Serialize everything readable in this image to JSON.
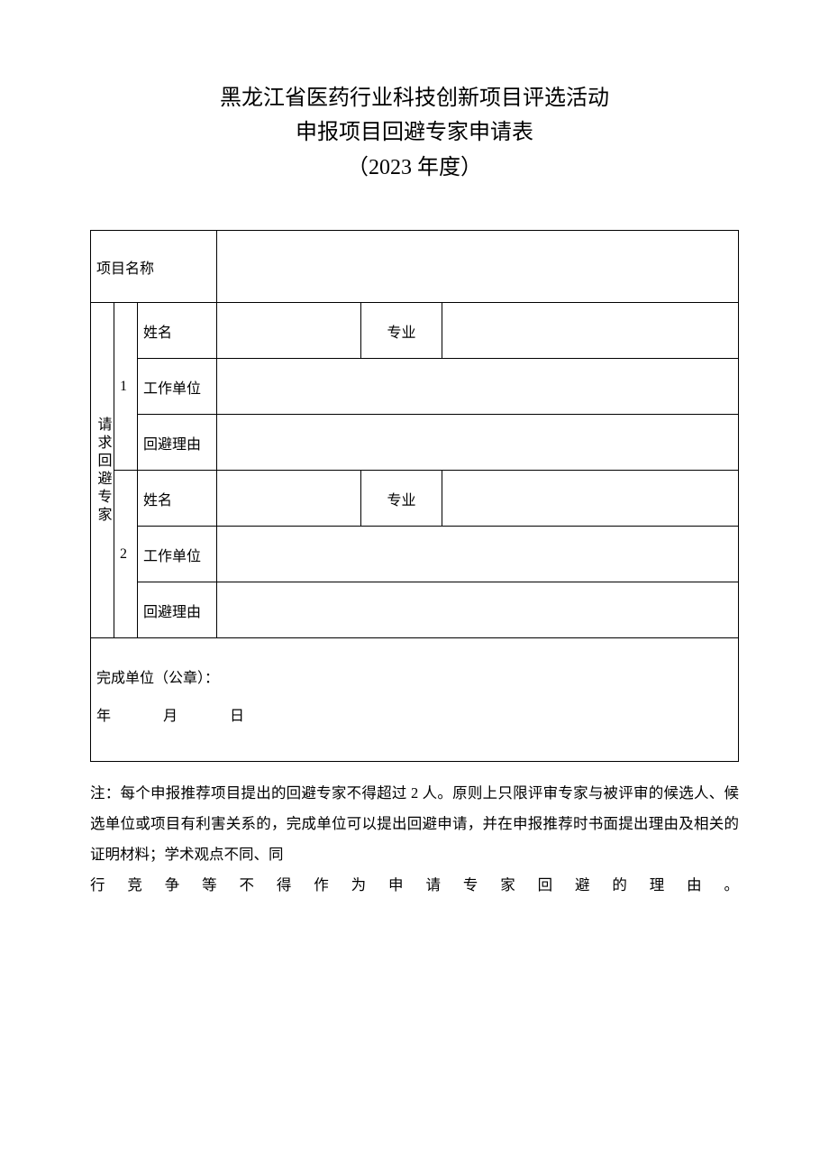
{
  "title_line1": "黑龙江省医药行业科技创新项目评选活动",
  "title_line2": "申报项目回避专家申请表",
  "title_line3": "（2023 年度）",
  "labels": {
    "project_name": "项目名称",
    "recusal_experts": "请求回避专家",
    "expert1_no": "1",
    "expert2_no": "2",
    "name": "姓名",
    "major": "专业",
    "work_unit": "工作单位",
    "reason": "回避理由",
    "org_seal": "完成单位（公章）：",
    "year": "年",
    "month": "月",
    "day": "日"
  },
  "values": {
    "project_name": "",
    "e1_name": "",
    "e1_major": "",
    "e1_unit": "",
    "e1_reason": "",
    "e2_name": "",
    "e2_major": "",
    "e2_unit": "",
    "e2_reason": ""
  },
  "note_prefix": "注：",
  "note_body_a": "每个申报推荐项目提出的回避专家不得超过 2 人。原则上只限评审专家与被评审的候选人、候选单位或项目有利害关系的，完成单位可以提出回避申请，并在申报推荐时书面提出理由及相关的证明材料；学术观点不同、同",
  "note_body_b": "行竞争等不得作为申请专家回避的理由。"
}
